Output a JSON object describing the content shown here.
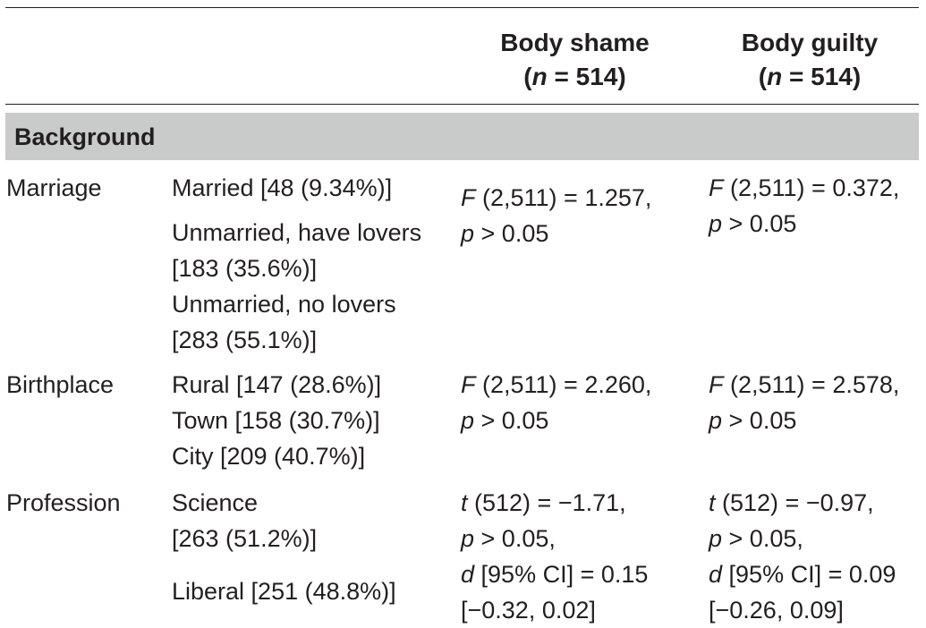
{
  "header": {
    "col_shame_title": "Body shame",
    "col_shame_n_symbol": "n",
    "col_shame_n_value": " = 514)",
    "col_guilty_title": "Body guilty",
    "col_guilty_n_symbol": "n",
    "col_guilty_n_value": " = 514)"
  },
  "section": {
    "label": "Background"
  },
  "rows": [
    {
      "variable": "Marriage",
      "categories": [
        "Married [48 (9.34%)]",
        "Unmarried, have lovers",
        "[183 (35.6%)]",
        "Unmarried, no lovers",
        "[283 (55.1%)]"
      ],
      "shame": {
        "stat1_sym": "F",
        "stat1_rest": " (2,511) = 1.257,",
        "stat2_sym": "p",
        "stat2_rest": " > 0.05"
      },
      "guilty": {
        "stat1_sym": "F",
        "stat1_rest": " (2,511) = 0.372,",
        "stat2_sym": "p",
        "stat2_rest": " > 0.05"
      }
    },
    {
      "variable": "Birthplace",
      "categories": [
        "Rural [147 (28.6%)]",
        "Town [158 (30.7%)]",
        "City [209 (40.7%)]"
      ],
      "shame": {
        "stat1_sym": "F",
        "stat1_rest": " (2,511) = 2.260,",
        "stat2_sym": "p",
        "stat2_rest": " > 0.05"
      },
      "guilty": {
        "stat1_sym": "F",
        "stat1_rest": " (2,511) = 2.578,",
        "stat2_sym": "p",
        "stat2_rest": " > 0.05"
      }
    },
    {
      "variable": "Profession",
      "categories": [
        "Science",
        "[263 (51.2%)]",
        "Liberal [251 (48.8%)]"
      ],
      "shame": {
        "stat1_sym": "t",
        "stat1_rest": " (512) = −1.71,",
        "stat2_sym": "p",
        "stat2_rest": " > 0.05,",
        "stat3_sym": "d",
        "stat3_rest": " [95% CI] = 0.15",
        "stat4": "[−0.32, 0.02]"
      },
      "guilty": {
        "stat1_sym": "t",
        "stat1_rest": " (512) = −0.97,",
        "stat2_sym": "p",
        "stat2_rest": " > 0.05,",
        "stat3_sym": "d",
        "stat3_rest": " [95% CI] = 0.09",
        "stat4": "[−0.26, 0.09]"
      }
    }
  ]
}
